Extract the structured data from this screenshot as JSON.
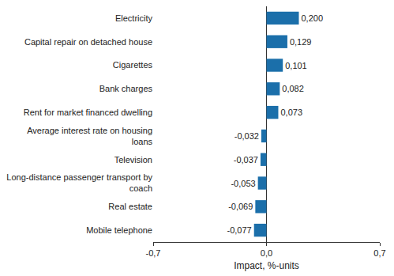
{
  "chart_data": {
    "type": "bar",
    "orientation": "horizontal",
    "categories": [
      "Electricity",
      "Capital repair on detached house",
      "Cigarettes",
      "Bank charges",
      "Rent for market financed dwelling",
      "Average interest rate on housing loans",
      "Television",
      "Long-distance passenger transport by coach",
      "Real estate",
      "Mobile telephone"
    ],
    "values": [
      0.2,
      0.129,
      0.101,
      0.082,
      0.073,
      -0.032,
      -0.037,
      -0.053,
      -0.069,
      -0.077
    ],
    "value_labels": [
      "0,200",
      "0,129",
      "0,101",
      "0,082",
      "0,073",
      "-0,032",
      "-0,037",
      "-0,053",
      "-0,069",
      "-0,077"
    ],
    "data_labels": true,
    "color": "#1b6faa",
    "x_label": "Impact, %-units",
    "xlim": [
      -0.7,
      0.7
    ],
    "xticks": [
      {
        "value": -0.7,
        "label": "-0,7"
      },
      {
        "value": 0,
        "label": "0,0"
      },
      {
        "value": 0.7,
        "label": "0,7"
      }
    ],
    "grid": true
  }
}
